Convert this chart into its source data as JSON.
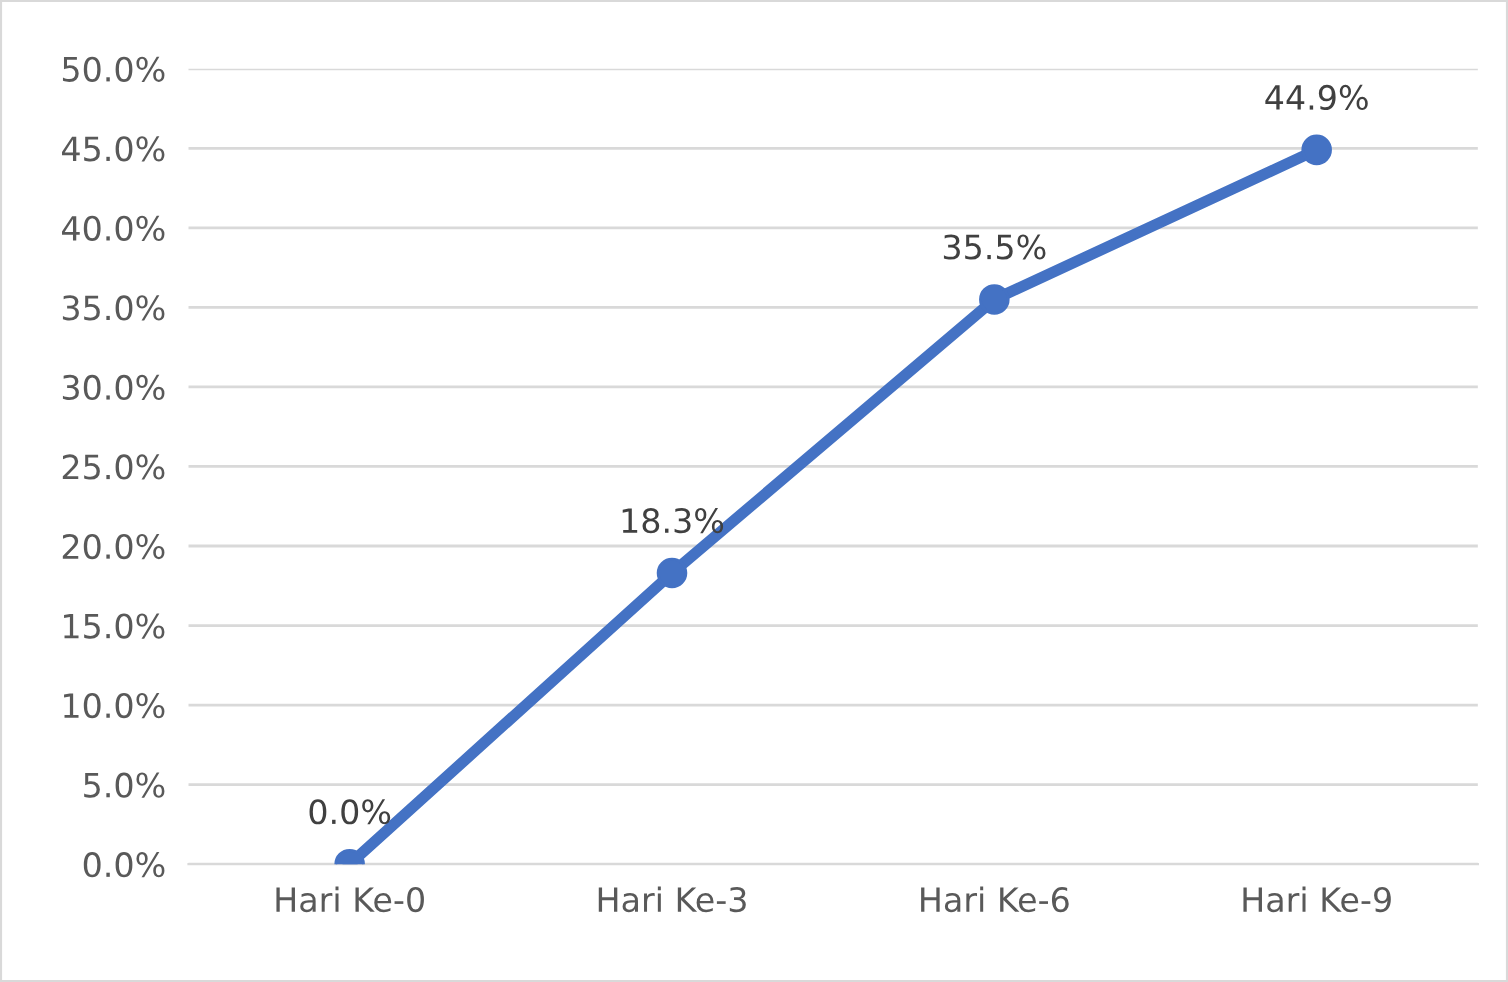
{
  "chart_data": {
    "type": "line",
    "categories": [
      "Hari Ke-0",
      "Hari Ke-3",
      "Hari Ke-6",
      "Hari Ke-9"
    ],
    "series": [
      {
        "color": "#4472c4",
        "values": [
          0,
          18.3,
          35.5,
          44.9
        ],
        "value_labels": [
          "0.0%",
          "18.3%",
          "35.5%",
          "44.9%"
        ]
      }
    ],
    "ylim": [
      0,
      50
    ],
    "yticks": [
      {
        "value": 0,
        "label": "0.0%"
      },
      {
        "value": 5,
        "label": "5.0%"
      },
      {
        "value": 10,
        "label": "10.0%"
      },
      {
        "value": 15,
        "label": "15.0%"
      },
      {
        "value": 20,
        "label": "20.0%"
      },
      {
        "value": 25,
        "label": "25.0%"
      },
      {
        "value": 30,
        "label": "30.0%"
      },
      {
        "value": 35,
        "label": "35.0%"
      },
      {
        "value": 40,
        "label": "40.0%"
      },
      {
        "value": 45,
        "label": "45.0%"
      },
      {
        "value": 50,
        "label": "50.0%"
      }
    ],
    "grid": "y",
    "legend": false,
    "marker": "circle",
    "line_style": "solid"
  }
}
